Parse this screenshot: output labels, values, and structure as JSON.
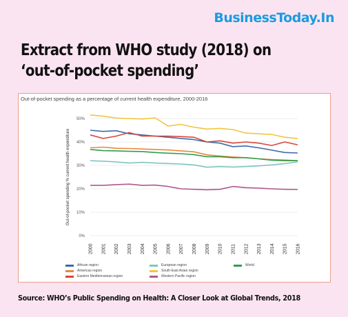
{
  "brand": "BusinessToday.In",
  "headline": "Extract from WHO study (2018) on ‘out-of-pocket spending’",
  "source": "Source: WHO’s Public Spending on Health: A Closer Look at Global Trends, 2018",
  "chart_data": {
    "type": "line",
    "title": "Out-of-pocket spending as a percentage of current health expenditure, 2000-2016",
    "ylabel": "Out-of-pocket spending % current health expenditure",
    "xlabel": "",
    "ylim": [
      0,
      50
    ],
    "y_ticks": [
      "0%",
      "10%",
      "20%",
      "30%",
      "40%",
      "50%"
    ],
    "grid": true,
    "x": [
      "2000",
      "2001",
      "2002",
      "2003",
      "2004",
      "2005",
      "2006",
      "2007",
      "2008",
      "2009",
      "2010",
      "2011",
      "2012",
      "2013",
      "2014",
      "2015",
      "2016"
    ],
    "series": [
      {
        "name": "African region",
        "color": "#3b6aa8",
        "values": [
          45,
          44.5,
          44.8,
          43.5,
          43,
          42.5,
          42,
          41.5,
          41,
          40,
          39.5,
          38,
          38.3,
          37.5,
          36.5,
          35.5,
          35.3
        ]
      },
      {
        "name": "Americas region",
        "color": "#e8873a",
        "values": [
          37.5,
          37.8,
          37.3,
          37.2,
          37,
          36.8,
          36.6,
          36.2,
          35.8,
          34.5,
          34,
          33.6,
          33.3,
          32.8,
          32.5,
          32.3,
          32
        ]
      },
      {
        "name": "Eastern Mediterranean region",
        "color": "#d9443a",
        "values": [
          43,
          41.5,
          42.5,
          44,
          42.5,
          42.5,
          42.5,
          42.3,
          42,
          40,
          40.5,
          39.5,
          40,
          39.5,
          38.5,
          40,
          38.8
        ]
      },
      {
        "name": "European region",
        "color": "#7fc4c4",
        "values": [
          32,
          31.8,
          31.5,
          31,
          31.3,
          31,
          30.8,
          30.6,
          30.2,
          29.2,
          29.5,
          29.3,
          29.5,
          29.8,
          30.2,
          30.8,
          31.5
        ]
      },
      {
        "name": "South-East Asian region",
        "color": "#f2c53d",
        "values": [
          51.5,
          51,
          50.2,
          50,
          49.8,
          50.3,
          46.8,
          47.5,
          46.3,
          45.5,
          45.8,
          45.3,
          43.8,
          43.5,
          43.2,
          42,
          41.5
        ]
      },
      {
        "name": "Western Pacific region",
        "color": "#b0568f",
        "values": [
          21.5,
          21.5,
          21.8,
          22,
          21.5,
          21.6,
          21,
          20,
          19.8,
          19.6,
          19.8,
          21,
          20.5,
          20.3,
          20,
          19.8,
          19.7
        ]
      },
      {
        "name": "World",
        "color": "#2f9e4d",
        "values": [
          36.8,
          36.3,
          36.2,
          36,
          35.9,
          35.5,
          35.2,
          35,
          34.6,
          33.7,
          33.7,
          33.3,
          33.3,
          32.8,
          32.2,
          32,
          32
        ]
      }
    ]
  }
}
